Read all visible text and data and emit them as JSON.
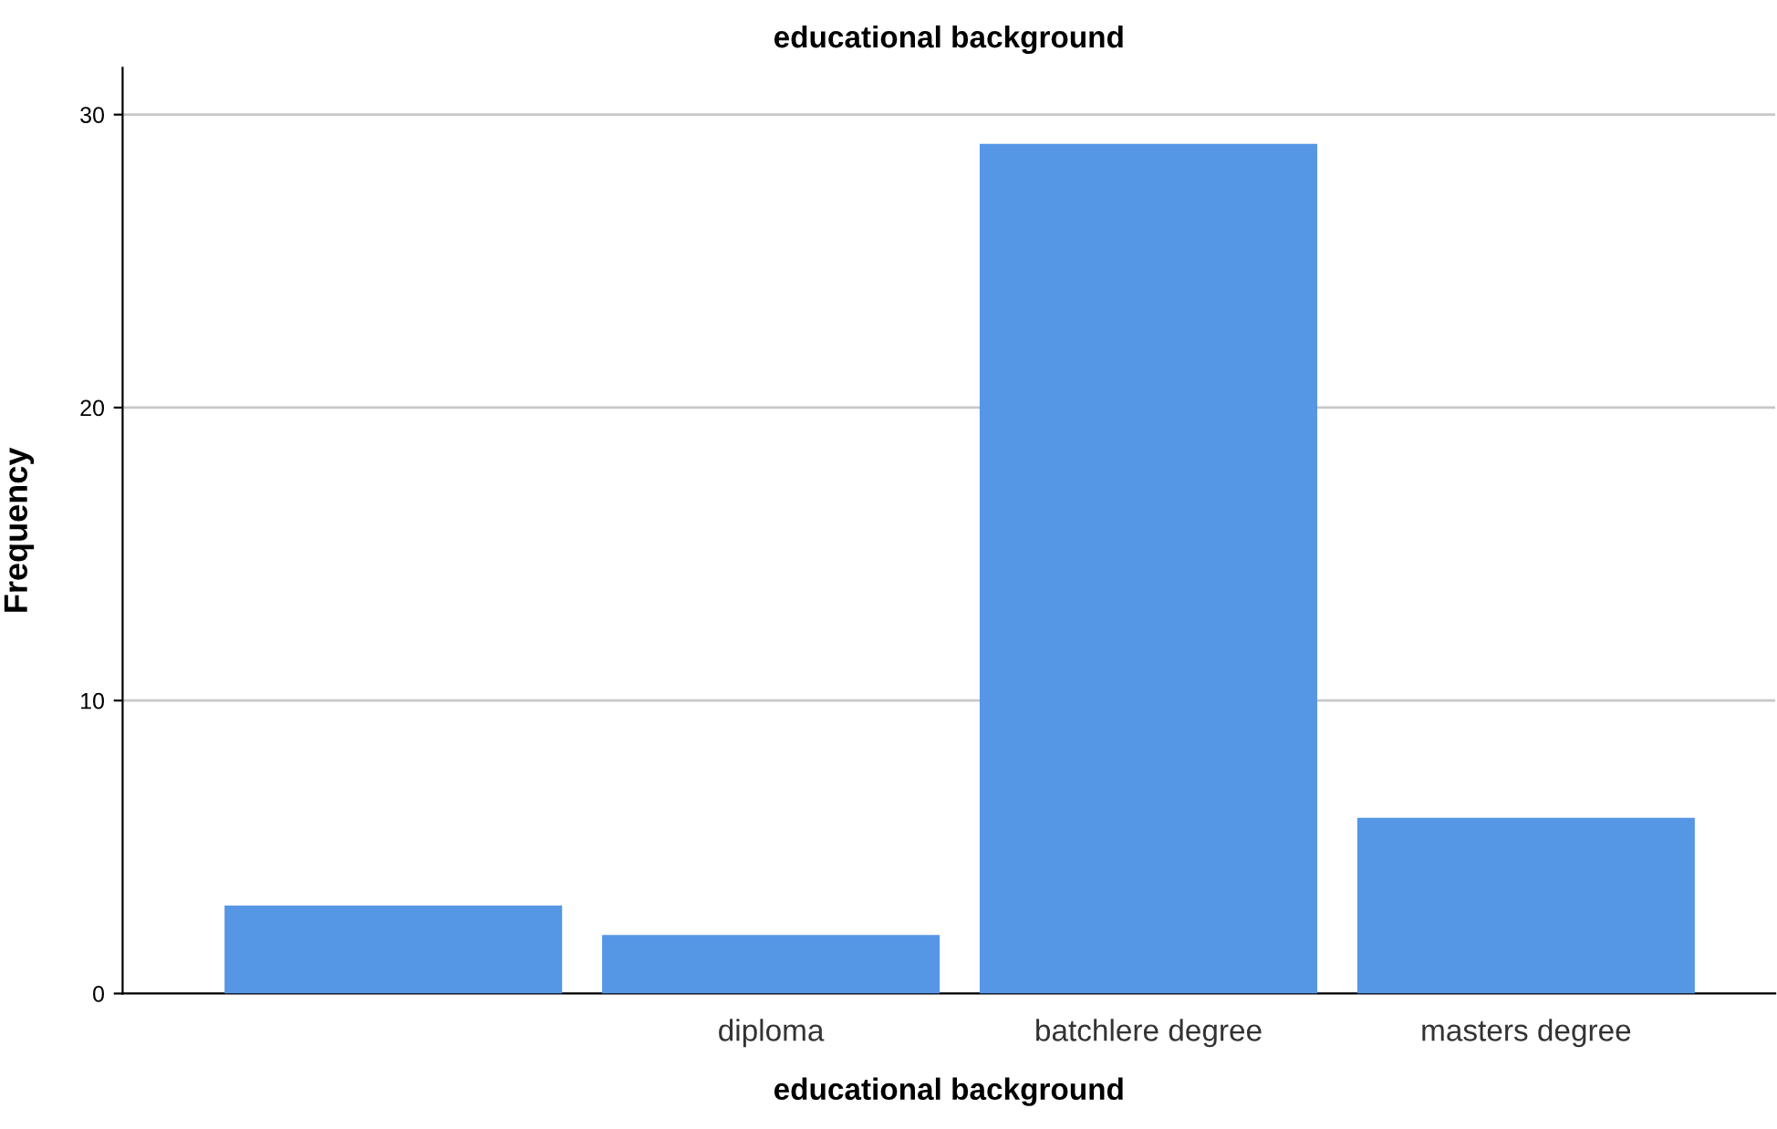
{
  "chart_data": {
    "type": "bar",
    "title": "educational background",
    "xlabel": "educational background",
    "ylabel": "Frequency",
    "categories": [
      null,
      "diploma",
      "batchlere degree",
      "masters degree"
    ],
    "values": [
      3,
      2,
      29,
      6
    ],
    "color": "#5596e5",
    "ylim": [
      0,
      31.6
    ],
    "yticks": [
      0,
      10,
      20,
      30
    ],
    "grid": "y"
  }
}
